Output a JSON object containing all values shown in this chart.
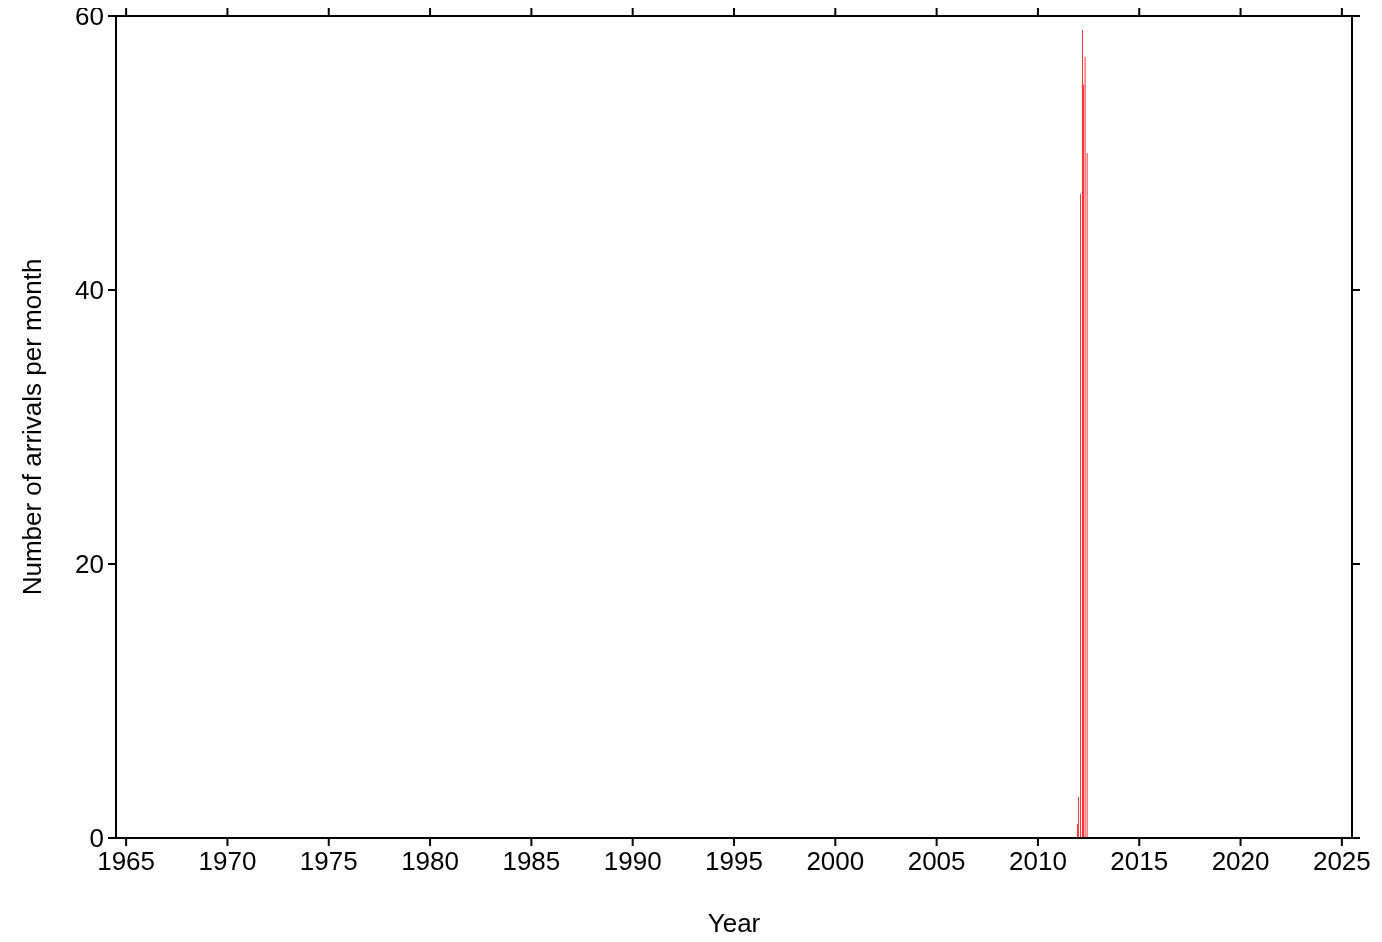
{
  "chart_data": {
    "type": "bar",
    "xlabel": "Year",
    "ylabel": "Number of arrivals per month",
    "x": [
      2011.95,
      2012.0,
      2012.1,
      2012.2,
      2012.25,
      2012.33,
      2012.43
    ],
    "values": [
      1,
      3,
      47,
      59,
      55,
      57,
      50
    ],
    "color": "#ff2020",
    "xlim": [
      1964.5,
      2025.5
    ],
    "xticks": [
      1965,
      1970,
      1975,
      1980,
      1985,
      1990,
      1995,
      2000,
      2005,
      2010,
      2015,
      2020,
      2025
    ],
    "ylim": [
      0,
      60
    ],
    "yticks": [
      0,
      20,
      40,
      60
    ],
    "grid": false,
    "legend": false
  }
}
